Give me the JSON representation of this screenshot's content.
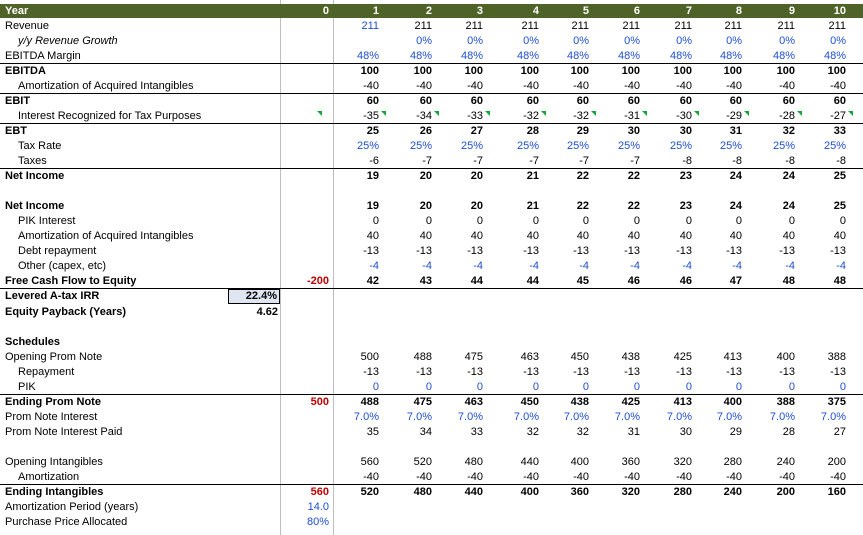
{
  "columns": [
    "0",
    "1",
    "2",
    "3",
    "4",
    "5",
    "6",
    "7",
    "8",
    "9",
    "10"
  ],
  "header": {
    "label": "Year"
  },
  "rows": [
    {
      "label": "Revenue",
      "values": [
        "",
        "211",
        "211",
        "211",
        "211",
        "211",
        "211",
        "211",
        "211",
        "211",
        "211"
      ],
      "blue_from": 1,
      "blue_to": 1
    },
    {
      "label": "y/y Revenue Growth",
      "values": [
        "",
        "",
        "0%",
        "0%",
        "0%",
        "0%",
        "0%",
        "0%",
        "0%",
        "0%",
        "0%"
      ],
      "all_blue": true,
      "italic": true
    },
    {
      "label": "EBITDA Margin",
      "values": [
        "",
        "48%",
        "48%",
        "48%",
        "48%",
        "48%",
        "48%",
        "48%",
        "48%",
        "48%",
        "48%"
      ],
      "all_blue": true
    },
    {
      "label": "EBITDA",
      "values": [
        "",
        "100",
        "100",
        "100",
        "100",
        "100",
        "100",
        "100",
        "100",
        "100",
        "100"
      ],
      "bold": true
    },
    {
      "label": "Amortization of Acquired Intangibles",
      "values": [
        "",
        "-40",
        "-40",
        "-40",
        "-40",
        "-40",
        "-40",
        "-40",
        "-40",
        "-40",
        "-40"
      ]
    },
    {
      "label": "EBIT",
      "values": [
        "",
        "60",
        "60",
        "60",
        "60",
        "60",
        "60",
        "60",
        "60",
        "60",
        "60"
      ],
      "bold": true
    },
    {
      "label": "Interest Recognized for Tax Purposes",
      "values": [
        "",
        "-35",
        "-34",
        "-33",
        "-32",
        "-32",
        "-31",
        "-30",
        "-29",
        "-28",
        "-27"
      ]
    },
    {
      "label": "EBT",
      "values": [
        "",
        "25",
        "26",
        "27",
        "28",
        "29",
        "30",
        "30",
        "31",
        "32",
        "33"
      ],
      "bold": true
    },
    {
      "label": "Tax Rate",
      "values": [
        "",
        "25%",
        "25%",
        "25%",
        "25%",
        "25%",
        "25%",
        "25%",
        "25%",
        "25%",
        "25%"
      ],
      "all_blue": true
    },
    {
      "label": "Taxes",
      "values": [
        "",
        "-6",
        "-7",
        "-7",
        "-7",
        "-7",
        "-7",
        "-8",
        "-8",
        "-8",
        "-8"
      ]
    },
    {
      "label": "Net Income",
      "values": [
        "",
        "19",
        "20",
        "20",
        "21",
        "22",
        "22",
        "23",
        "24",
        "24",
        "25"
      ],
      "bold": true
    },
    {
      "label": "",
      "values": [
        "",
        "",
        "",
        "",
        "",
        "",
        "",
        "",
        "",
        "",
        ""
      ]
    },
    {
      "label": "Net Income",
      "values": [
        "",
        "19",
        "20",
        "20",
        "21",
        "22",
        "22",
        "23",
        "24",
        "24",
        "25"
      ],
      "bold": true
    },
    {
      "label": "PIK Interest",
      "values": [
        "",
        "0",
        "0",
        "0",
        "0",
        "0",
        "0",
        "0",
        "0",
        "0",
        "0"
      ]
    },
    {
      "label": "Amortization of Acquired Intangibles",
      "values": [
        "",
        "40",
        "40",
        "40",
        "40",
        "40",
        "40",
        "40",
        "40",
        "40",
        "40"
      ]
    },
    {
      "label": "Debt repayment",
      "values": [
        "",
        "-13",
        "-13",
        "-13",
        "-13",
        "-13",
        "-13",
        "-13",
        "-13",
        "-13",
        "-13"
      ]
    },
    {
      "label": "Other (capex, etc)",
      "values": [
        "",
        "-4",
        "-4",
        "-4",
        "-4",
        "-4",
        "-4",
        "-4",
        "-4",
        "-4",
        "-4"
      ],
      "all_blue": true
    },
    {
      "label": "Free Cash Flow to Equity",
      "values": [
        "-200",
        "42",
        "43",
        "44",
        "44",
        "45",
        "46",
        "46",
        "47",
        "48",
        "48"
      ],
      "bold": true
    },
    {
      "label": "Levered A-tax IRR",
      "values": [
        "",
        "",
        "",
        "",
        "",
        "",
        "",
        "",
        "",
        "",
        ""
      ],
      "bold": true,
      "kpi": "22.4%"
    },
    {
      "label": "Equity Payback (Years)",
      "values": [
        "",
        "",
        "",
        "",
        "",
        "",
        "",
        "",
        "",
        "",
        ""
      ],
      "bold": true,
      "kpi_plain": "4.62"
    },
    {
      "label": "",
      "values": [
        "",
        "",
        "",
        "",
        "",
        "",
        "",
        "",
        "",
        "",
        ""
      ]
    },
    {
      "label": "Schedules",
      "values": [
        "",
        "",
        "",
        "",
        "",
        "",
        "",
        "",
        "",
        "",
        ""
      ],
      "bold": true
    },
    {
      "label": "Opening Prom Note",
      "values": [
        "",
        "500",
        "488",
        "475",
        "463",
        "450",
        "438",
        "425",
        "413",
        "400",
        "388"
      ]
    },
    {
      "label": "Repayment",
      "values": [
        "",
        "-13",
        "-13",
        "-13",
        "-13",
        "-13",
        "-13",
        "-13",
        "-13",
        "-13",
        "-13"
      ]
    },
    {
      "label": "PIK",
      "values": [
        "",
        "0",
        "0",
        "0",
        "0",
        "0",
        "0",
        "0",
        "0",
        "0",
        "0"
      ],
      "all_blue": true
    },
    {
      "label": "Ending Prom Note",
      "values": [
        "500",
        "488",
        "475",
        "463",
        "450",
        "438",
        "425",
        "413",
        "400",
        "388",
        "375"
      ],
      "bold": true
    },
    {
      "label": "Prom Note Interest",
      "values": [
        "",
        "7.0%",
        "7.0%",
        "7.0%",
        "7.0%",
        "7.0%",
        "7.0%",
        "7.0%",
        "7.0%",
        "7.0%",
        "7.0%"
      ],
      "all_blue": true
    },
    {
      "label": "Prom Note Interest Paid",
      "values": [
        "",
        "35",
        "34",
        "33",
        "32",
        "32",
        "31",
        "30",
        "29",
        "28",
        "27"
      ]
    },
    {
      "label": "",
      "values": [
        "",
        "",
        "",
        "",
        "",
        "",
        "",
        "",
        "",
        "",
        ""
      ]
    },
    {
      "label": "Opening Intangibles",
      "values": [
        "",
        "560",
        "520",
        "480",
        "440",
        "400",
        "360",
        "320",
        "280",
        "240",
        "200"
      ]
    },
    {
      "label": "Amortization",
      "values": [
        "",
        "-40",
        "-40",
        "-40",
        "-40",
        "-40",
        "-40",
        "-40",
        "-40",
        "-40",
        "-40"
      ]
    },
    {
      "label": "Ending Intangibles",
      "values": [
        "560",
        "520",
        "480",
        "440",
        "400",
        "360",
        "320",
        "280",
        "240",
        "200",
        "160"
      ],
      "bold": true
    },
    {
      "label": "Amortization Period (years)",
      "values": [
        "14.0",
        "",
        "",
        "",
        "",
        "",
        "",
        "",
        "",
        "",
        ""
      ]
    },
    {
      "label": "Purchase Price Allocated",
      "values": [
        "80%",
        "",
        "",
        "",
        "",
        "",
        "",
        "",
        "",
        "",
        ""
      ]
    }
  ],
  "colors": {
    "header_bg": "#4f6228",
    "input_blue": "#1f4fd1",
    "negative_red": "#c00000",
    "kpi_fill": "#dfe5f1",
    "flag_green": "#13a538"
  }
}
